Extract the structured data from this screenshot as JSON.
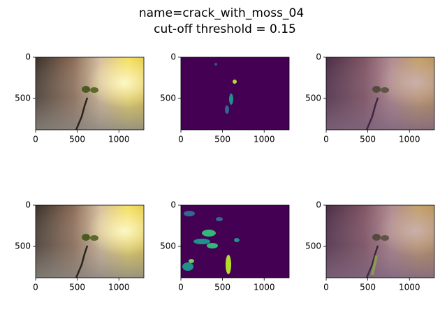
{
  "title": "name=crack_with_moss_04",
  "subtitle": "cut-off threshold = 0.15",
  "chart_data": [
    {
      "type": "image",
      "xlim": [
        0,
        1300
      ],
      "ylim": [
        880,
        0
      ],
      "xticks": [
        0,
        500,
        1000
      ],
      "yticks": [
        0,
        500
      ]
    },
    {
      "type": "image",
      "xlim": [
        0,
        1300
      ],
      "ylim": [
        880,
        0
      ],
      "xticks": [
        0,
        500,
        1000
      ],
      "yticks": [
        0,
        500
      ]
    },
    {
      "type": "image",
      "xlim": [
        0,
        1300
      ],
      "ylim": [
        880,
        0
      ],
      "xticks": [
        0,
        500,
        1000
      ],
      "yticks": [
        0,
        500
      ]
    },
    {
      "type": "image",
      "xlim": [
        0,
        1300
      ],
      "ylim": [
        880,
        0
      ],
      "xticks": [
        0,
        500,
        1000
      ],
      "yticks": [
        0,
        500
      ]
    },
    {
      "type": "image",
      "xlim": [
        0,
        1300
      ],
      "ylim": [
        880,
        0
      ],
      "xticks": [
        0,
        500,
        1000
      ],
      "yticks": [
        0,
        500
      ]
    },
    {
      "type": "image",
      "xlim": [
        0,
        1300
      ],
      "ylim": [
        880,
        0
      ],
      "xticks": [
        0,
        500,
        1000
      ],
      "yticks": [
        0,
        500
      ]
    }
  ]
}
